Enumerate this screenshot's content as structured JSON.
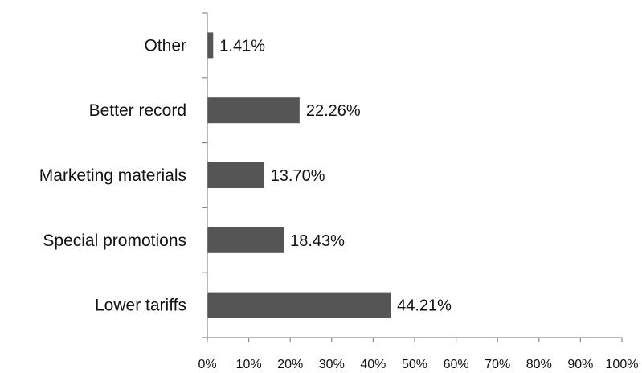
{
  "chart_data": {
    "type": "bar",
    "orientation": "horizontal",
    "categories": [
      "Lower tariffs",
      "Special promotions",
      "Marketing materials",
      "Better record",
      "Other"
    ],
    "values": [
      44.21,
      18.43,
      13.7,
      22.26,
      1.41
    ],
    "value_labels": [
      "44.21%",
      "18.43%",
      "13.70%",
      "22.26%",
      "1.41%"
    ],
    "xlim": [
      0,
      100
    ],
    "x_ticks": [
      0,
      10,
      20,
      30,
      40,
      50,
      60,
      70,
      80,
      90,
      100
    ],
    "x_tick_labels": [
      "0%",
      "10%",
      "20%",
      "30%",
      "40%",
      "50%",
      "60%",
      "70%",
      "80%",
      "90%",
      "100%"
    ],
    "title": "",
    "xlabel": "",
    "ylabel": "",
    "grid": false,
    "legend": "none",
    "bar_color": "#555555"
  }
}
